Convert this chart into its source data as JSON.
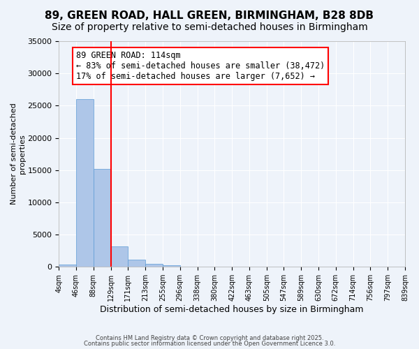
{
  "title": "89, GREEN ROAD, HALL GREEN, BIRMINGHAM, B28 8DB",
  "subtitle": "Size of property relative to semi-detached houses in Birmingham",
  "xlabel": "Distribution of semi-detached houses by size in Birmingham",
  "ylabel": "Number of semi-detached\nproperties",
  "bar_values": [
    350,
    26000,
    15200,
    3200,
    1100,
    450,
    200,
    0,
    0,
    0,
    0,
    0,
    0,
    0,
    0,
    0,
    0,
    0,
    0,
    0
  ],
  "bin_labels": [
    "4sqm",
    "46sqm",
    "88sqm",
    "129sqm",
    "171sqm",
    "213sqm",
    "255sqm",
    "296sqm",
    "338sqm",
    "380sqm",
    "422sqm",
    "463sqm",
    "505sqm",
    "547sqm",
    "589sqm",
    "630sqm",
    "672sqm",
    "714sqm",
    "756sqm",
    "797sqm",
    "839sqm"
  ],
  "bar_color": "#AEC6E8",
  "bar_edge_color": "#5B9BD5",
  "red_line_bin": 2,
  "annotation_text": "89 GREEN ROAD: 114sqm\n← 83% of semi-detached houses are smaller (38,472)\n17% of semi-detached houses are larger (7,652) →",
  "annotation_box_color": "white",
  "annotation_box_edge_color": "red",
  "ylim": [
    0,
    35000
  ],
  "yticks": [
    0,
    5000,
    10000,
    15000,
    20000,
    25000,
    30000,
    35000
  ],
  "background_color": "#EEF3FA",
  "footer_line1": "Contains HM Land Registry data © Crown copyright and database right 2025.",
  "footer_line2": "Contains public sector information licensed under the Open Government Licence 3.0.",
  "title_fontsize": 11,
  "subtitle_fontsize": 10,
  "annot_fontsize": 8.5
}
